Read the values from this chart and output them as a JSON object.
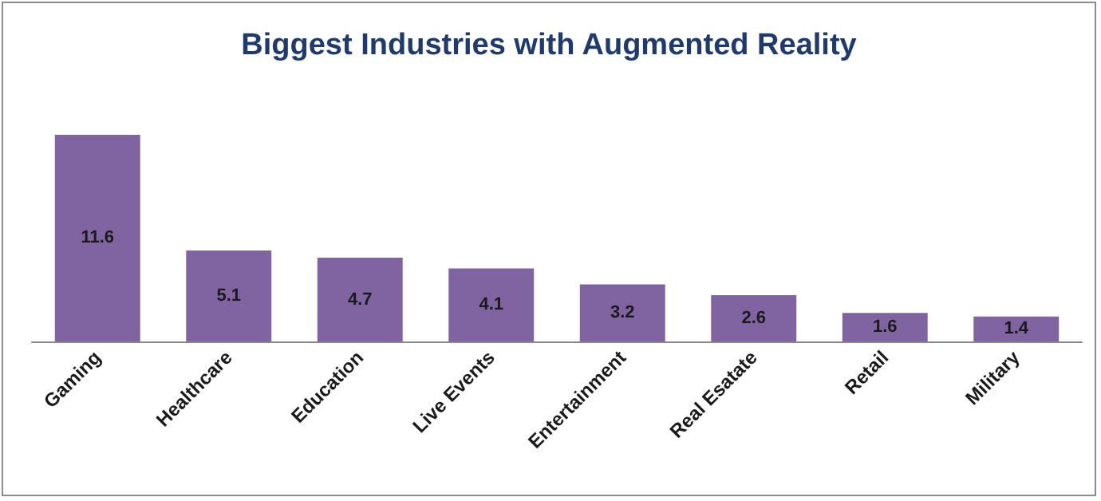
{
  "chart_data": {
    "type": "bar",
    "title": "Biggest Industries with Augmented Reality",
    "categories": [
      "Gaming",
      "Healthcare",
      "Education",
      "Live Events",
      "Entertainment",
      "Real Esatate",
      "Retail",
      "Military"
    ],
    "values": [
      11.6,
      5.1,
      4.7,
      4.1,
      3.2,
      2.6,
      1.6,
      1.4
    ],
    "color": "#8064a2",
    "data_labels": true
  }
}
